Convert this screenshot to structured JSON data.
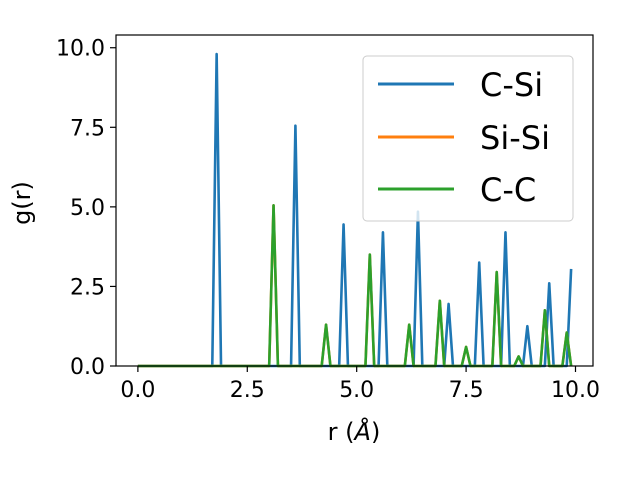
{
  "chart_data": {
    "type": "line",
    "xlabel_main": "r (",
    "xlabel_unit": "Å",
    "xlabel_close": ")",
    "ylabel": "g(r)",
    "xlim": [
      -0.5,
      10.4
    ],
    "ylim": [
      0,
      10.4
    ],
    "xticks": [
      0.0,
      2.5,
      5.0,
      7.5,
      10.0
    ],
    "xtick_labels": [
      "0.0",
      "2.5",
      "5.0",
      "7.5",
      "10.0"
    ],
    "yticks": [
      0.0,
      2.5,
      5.0,
      7.5,
      10.0
    ],
    "ytick_labels": [
      "0.0",
      "2.5",
      "5.0",
      "7.5",
      "10.0"
    ],
    "grid": false,
    "legend_position": "top-right",
    "series": [
      {
        "name": "C-Si",
        "color": "#1f77b4",
        "points": [
          [
            0.0,
            0
          ],
          [
            1.7,
            0
          ],
          [
            1.8,
            9.8
          ],
          [
            1.9,
            0
          ],
          [
            3.5,
            0
          ],
          [
            3.6,
            7.55
          ],
          [
            3.7,
            0
          ],
          [
            4.6,
            0
          ],
          [
            4.7,
            4.45
          ],
          [
            4.8,
            0
          ],
          [
            5.5,
            0
          ],
          [
            5.6,
            4.2
          ],
          [
            5.7,
            0
          ],
          [
            6.3,
            0
          ],
          [
            6.4,
            4.85
          ],
          [
            6.5,
            0
          ],
          [
            7.0,
            0
          ],
          [
            7.1,
            1.95
          ],
          [
            7.2,
            0
          ],
          [
            7.7,
            0
          ],
          [
            7.8,
            3.25
          ],
          [
            7.9,
            0
          ],
          [
            8.3,
            0
          ],
          [
            8.4,
            4.2
          ],
          [
            8.5,
            0
          ],
          [
            8.8,
            0
          ],
          [
            8.9,
            1.25
          ],
          [
            9.0,
            0
          ],
          [
            9.3,
            0
          ],
          [
            9.4,
            2.6
          ],
          [
            9.5,
            0
          ],
          [
            9.8,
            0
          ],
          [
            9.9,
            3.05
          ]
        ]
      },
      {
        "name": "Si-Si",
        "color": "#ff7f0e",
        "points": [
          [
            0.0,
            0
          ],
          [
            3.0,
            0
          ],
          [
            3.1,
            5.05
          ],
          [
            3.2,
            0
          ],
          [
            4.2,
            0
          ],
          [
            4.3,
            1.3
          ],
          [
            4.4,
            0
          ],
          [
            5.2,
            0
          ],
          [
            5.3,
            3.5
          ],
          [
            5.4,
            0
          ],
          [
            6.1,
            0
          ],
          [
            6.2,
            1.3
          ],
          [
            6.3,
            0
          ],
          [
            6.8,
            0
          ],
          [
            6.9,
            2.05
          ],
          [
            7.0,
            0
          ],
          [
            7.4,
            0
          ],
          [
            7.5,
            0.6
          ],
          [
            7.6,
            0
          ],
          [
            8.1,
            0
          ],
          [
            8.2,
            2.95
          ],
          [
            8.3,
            0
          ],
          [
            8.6,
            0
          ],
          [
            8.7,
            0.3
          ],
          [
            8.8,
            0
          ],
          [
            9.2,
            0
          ],
          [
            9.3,
            1.75
          ],
          [
            9.4,
            0
          ],
          [
            9.7,
            0
          ],
          [
            9.8,
            1.05
          ],
          [
            9.9,
            0
          ]
        ]
      },
      {
        "name": "C-C",
        "color": "#2ca02c",
        "points": [
          [
            0.0,
            0
          ],
          [
            3.0,
            0
          ],
          [
            3.1,
            5.05
          ],
          [
            3.2,
            0
          ],
          [
            4.2,
            0
          ],
          [
            4.3,
            1.3
          ],
          [
            4.4,
            0
          ],
          [
            5.2,
            0
          ],
          [
            5.3,
            3.5
          ],
          [
            5.4,
            0
          ],
          [
            6.1,
            0
          ],
          [
            6.2,
            1.3
          ],
          [
            6.3,
            0
          ],
          [
            6.8,
            0
          ],
          [
            6.9,
            2.05
          ],
          [
            7.0,
            0
          ],
          [
            7.4,
            0
          ],
          [
            7.5,
            0.6
          ],
          [
            7.6,
            0
          ],
          [
            8.1,
            0
          ],
          [
            8.2,
            2.95
          ],
          [
            8.3,
            0
          ],
          [
            8.6,
            0
          ],
          [
            8.7,
            0.3
          ],
          [
            8.8,
            0
          ],
          [
            9.2,
            0
          ],
          [
            9.3,
            1.75
          ],
          [
            9.4,
            0
          ],
          [
            9.7,
            0
          ],
          [
            9.8,
            1.05
          ],
          [
            9.9,
            0
          ]
        ]
      }
    ]
  }
}
